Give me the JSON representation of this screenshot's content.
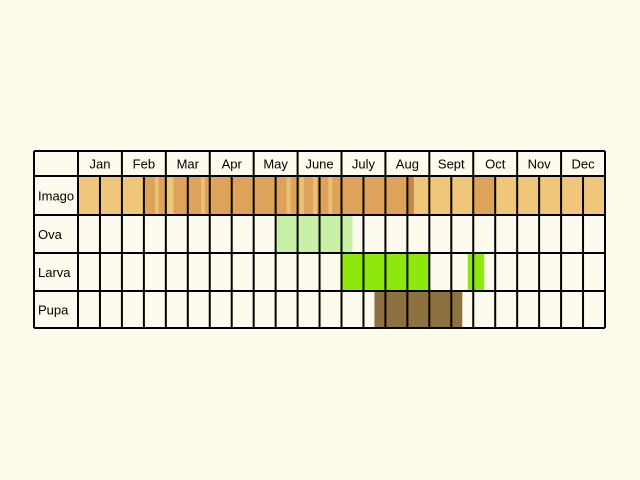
{
  "months": [
    "Jan",
    "Feb",
    "Mar",
    "Apr",
    "May",
    "June",
    "July",
    "Aug",
    "Sept",
    "Oct",
    "Nov",
    "Dec"
  ],
  "stages": [
    {
      "label": "Imago",
      "key": "imago"
    },
    {
      "label": "Ova",
      "key": "ova"
    },
    {
      "label": "Larva",
      "key": "larva"
    },
    {
      "label": "Pupa",
      "key": "pupa"
    }
  ],
  "colors": {
    "background": "#fcfaea",
    "cell_empty": "#fdfbee",
    "grid": "#000000",
    "imago_light": "#f0c77a",
    "imago_mid": "#dda35a",
    "imago_dark": "#c3884a",
    "ova": "#c8f0a6",
    "larva": "#8ee80c",
    "pupa": "#8e7140"
  },
  "chart_data": {
    "type": "table",
    "columns_per_month": 2,
    "segments": {
      "imago": [
        {
          "from": 0.0,
          "to": 1.0,
          "tone": "light"
        },
        {
          "from": 1.0,
          "to": 3.0,
          "tone": "light"
        },
        {
          "from": 3.0,
          "to": 4.0,
          "tone": "mid"
        },
        {
          "from": 4.0,
          "to": 4.35,
          "tone": "light"
        },
        {
          "from": 4.35,
          "to": 6.1,
          "tone": "mid"
        },
        {
          "from": 6.1,
          "to": 14.0,
          "tone": "mid"
        },
        {
          "from": 14.0,
          "to": 15.0,
          "tone": "mid"
        },
        {
          "from": 15.0,
          "to": 15.3,
          "tone": "dark"
        },
        {
          "from": 15.3,
          "to": 18.0,
          "tone": "light"
        },
        {
          "from": 18.0,
          "to": 19.0,
          "tone": "mid"
        },
        {
          "from": 19.0,
          "to": 24.0,
          "tone": "light"
        }
      ],
      "imago_stripes": [
        0.6,
        1.4,
        2.4,
        3.5,
        5.6,
        9.5,
        10.1,
        10.7,
        11.4,
        17.4,
        19.7,
        20.4,
        21.4,
        22.4
      ],
      "ova": [
        {
          "from": 9.0,
          "to": 12.5
        }
      ],
      "larva": [
        {
          "from": 12.0,
          "to": 16.0
        },
        {
          "from": 17.75,
          "to": 18.5
        }
      ],
      "pupa": [
        {
          "from": 13.5,
          "to": 17.5
        }
      ]
    }
  }
}
